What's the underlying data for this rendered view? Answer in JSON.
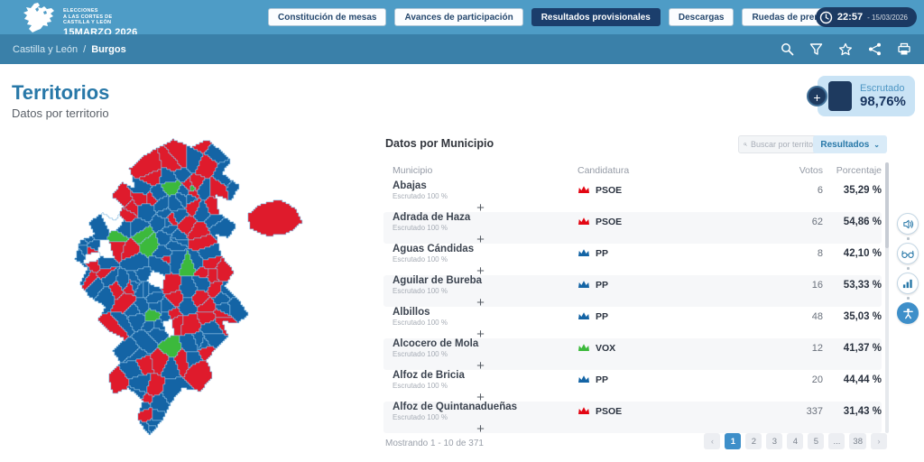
{
  "header": {
    "logo": {
      "line1": "ELECCIONES",
      "line2": "A LAS CORTES DE",
      "line3": "CASTILLA Y LEÓN",
      "date": "15MARZO 2026"
    },
    "nav": [
      {
        "label": "Constitución de mesas",
        "active": false
      },
      {
        "label": "Avances de participación",
        "active": false
      },
      {
        "label": "Resultados provisionales",
        "active": true
      },
      {
        "label": "Descargas",
        "active": false
      },
      {
        "label": "Ruedas de prensa",
        "active": false
      }
    ],
    "clock": {
      "time": "22:57",
      "date": "- 15/03/2026"
    }
  },
  "breadcrumb": {
    "region": "Castilla y León",
    "separator": "/",
    "province": "Burgos",
    "tool_icons": [
      "search-icon",
      "filter-icon",
      "star-icon",
      "share-icon",
      "print-icon"
    ]
  },
  "page": {
    "title": "Territorios",
    "subtitle": "Datos por territorio"
  },
  "scrutiny": {
    "label": "Escrutado",
    "value": "98,76%",
    "plus": "+"
  },
  "map": {
    "name": "burgos-municipality-choropleth",
    "colors": {
      "pp": "#1464A5",
      "psoe": "#DF1B2C",
      "vox": "#3CB93C",
      "dark_red": "#8E1323",
      "hole": "#FFFFFF",
      "border": "#8FC1E3"
    }
  },
  "panel": {
    "title": "Datos por Municipio",
    "search_placeholder": "Buscar por territorio",
    "results_label": "Resultados",
    "results_chevron": "⌄",
    "columns": [
      "Municipio",
      "Candidatura",
      "Votos",
      "Porcentaje"
    ],
    "rows": [
      {
        "name": "Abajas",
        "scrutiny": "Escrutado 100 %",
        "party": "PSOE",
        "party_color": "#E30613",
        "votes": "6",
        "pct": "35,29 %",
        "expand": "+"
      },
      {
        "name": "Adrada de Haza",
        "scrutiny": "Escrutado 100 %",
        "party": "PSOE",
        "party_color": "#E30613",
        "votes": "62",
        "pct": "54,86 %",
        "expand": "+"
      },
      {
        "name": "Aguas Cándidas",
        "scrutiny": "Escrutado 100 %",
        "party": "PP",
        "party_color": "#1464A5",
        "votes": "8",
        "pct": "42,10 %",
        "expand": "+"
      },
      {
        "name": "Aguilar de Bureba",
        "scrutiny": "Escrutado 100 %",
        "party": "PP",
        "party_color": "#1464A5",
        "votes": "16",
        "pct": "53,33 %",
        "expand": "+"
      },
      {
        "name": "Albillos",
        "scrutiny": "Escrutado 100 %",
        "party": "PP",
        "party_color": "#1464A5",
        "votes": "48",
        "pct": "35,03 %",
        "expand": "+"
      },
      {
        "name": "Alcocero de Mola",
        "scrutiny": "Escrutado 100 %",
        "party": "VOX",
        "party_color": "#3CB93C",
        "votes": "12",
        "pct": "41,37 %",
        "expand": "+"
      },
      {
        "name": "Alfoz de Bricia",
        "scrutiny": "Escrutado 100 %",
        "party": "PP",
        "party_color": "#1464A5",
        "votes": "20",
        "pct": "44,44 %",
        "expand": "+"
      },
      {
        "name": "Alfoz de Quintanadueñas",
        "scrutiny": "Escrutado 100 %",
        "party": "PSOE",
        "party_color": "#E30613",
        "votes": "337",
        "pct": "31,43 %",
        "expand": "+"
      }
    ],
    "footer": "Mostrando 1 - 10 de 371",
    "pagination": {
      "prev": "‹",
      "next": "›",
      "pages": [
        "1",
        "2",
        "3",
        "4",
        "5",
        "...",
        "38"
      ],
      "active_page": "1"
    }
  },
  "floating_icons": [
    "audio-icon",
    "reading-glasses-icon",
    "stats-icon",
    "accessibility-icon"
  ]
}
